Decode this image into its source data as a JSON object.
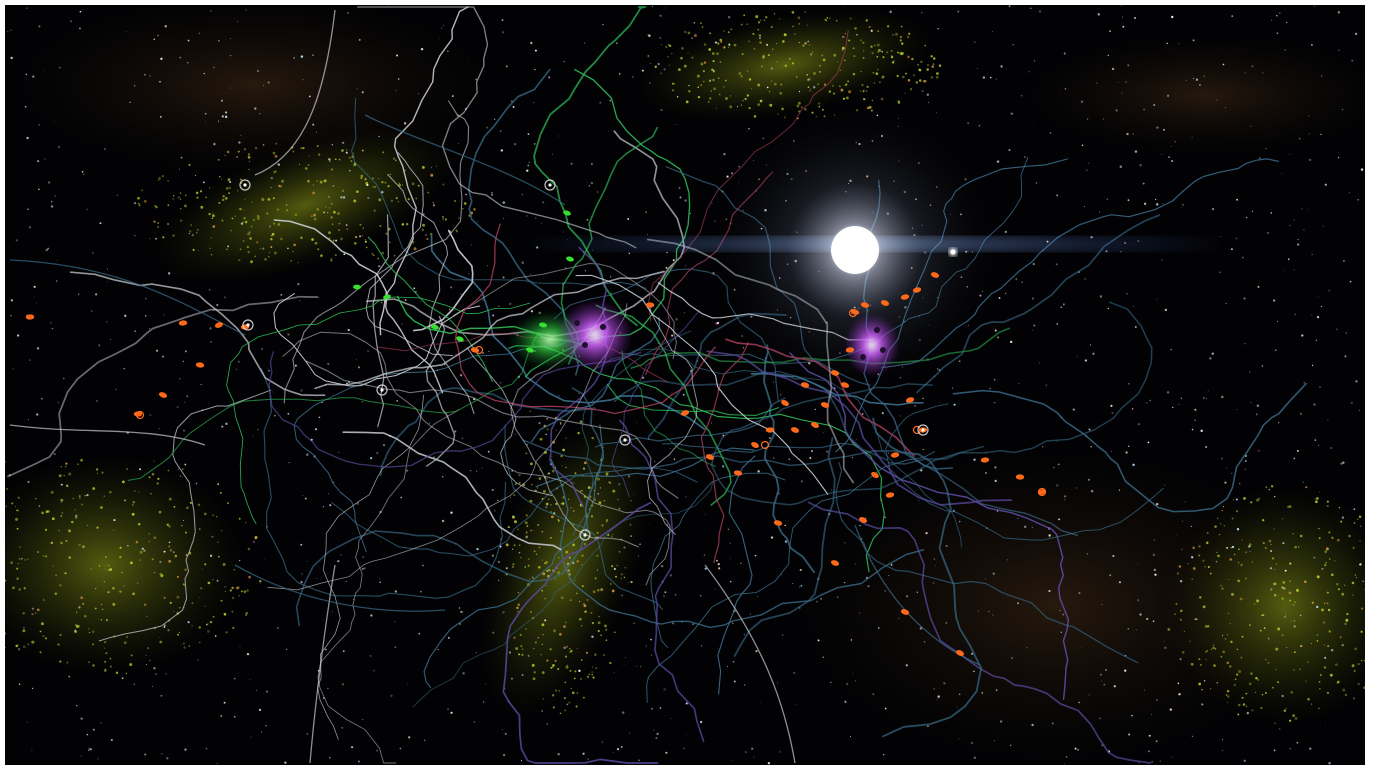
{
  "scene": {
    "colors": {
      "space_background": "#020204",
      "nebula_yellow_green": "#b6c81e",
      "nebula_brown": "#5a3a1e",
      "trail_blue": "#3b6e8c",
      "trail_white": "#c8ccd2",
      "trail_green": "#2fbf5a",
      "trail_purple": "#5a4aa0",
      "trail_red": "#b04060",
      "ship_orange": "#ff6a1a",
      "ship_green": "#37e030",
      "cluster_magenta": "#c050e0",
      "star_glow": "#ffffff"
    },
    "objects": [
      {
        "kind": "sun-glow"
      },
      {
        "kind": "magenta-cluster-left"
      },
      {
        "kind": "magenta-cluster-right"
      },
      {
        "kind": "green-cluster"
      },
      {
        "kind": "orange-ships"
      },
      {
        "kind": "green-ships"
      },
      {
        "kind": "trail-network"
      },
      {
        "kind": "nebula-clouds"
      },
      {
        "kind": "starfield"
      }
    ]
  }
}
